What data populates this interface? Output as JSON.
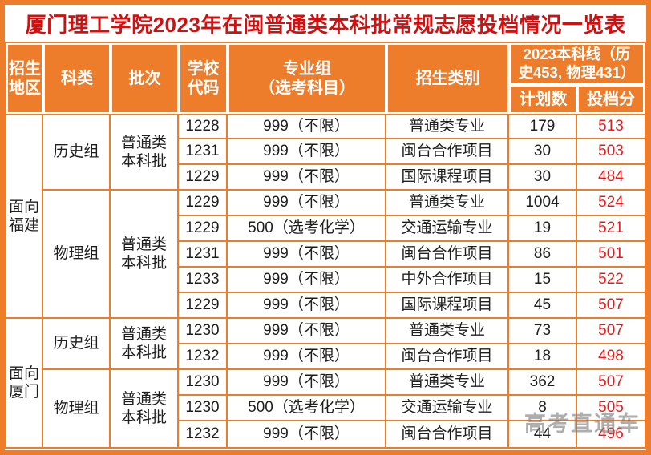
{
  "title": "厦门理工学院2023年在闽普通类本科批常规志愿投档情况一览表",
  "watermark": "高考直通车",
  "colors": {
    "orange": "#ED7C2B",
    "title_red": "#D30F0F",
    "score_red": "#E51A1A",
    "text": "#1F1F1F",
    "watermark_gray": "#7D7D7D"
  },
  "header": {
    "region": "招生\n地区",
    "category": "科类",
    "batch": "批次",
    "school_code": "学校\n代码",
    "major_group": "专业组\n（选考科目）",
    "admission_type": "招生类别",
    "score_line": "2023本科线（历\n史453, 物理431）",
    "plan_count": "计划数",
    "admit_score": "投档分"
  },
  "regions": [
    {
      "label": "面向\n福建",
      "rows": 8
    },
    {
      "label": "面向\n厦门",
      "rows": 5
    }
  ],
  "groups": [
    {
      "category": "历史组",
      "batch": "普通类\n本科批",
      "rows": 3
    },
    {
      "category": "物理组",
      "batch": "普通类\n本科批",
      "rows": 5
    },
    {
      "category": "历史组",
      "batch": "普通类\n本科批",
      "rows": 2
    },
    {
      "category": "物理组",
      "batch": "普通类\n本科批",
      "rows": 3
    }
  ],
  "chart_data": {
    "type": "table",
    "title": "厦门理工学院2023年在闽普通类本科批常规志愿投档情况一览表",
    "score_line_note": "2023本科线（历史453, 物理431）",
    "columns": [
      "招生地区",
      "科类",
      "批次",
      "学校代码",
      "专业组（选考科目）",
      "招生类别",
      "计划数",
      "投档分"
    ],
    "rows": [
      {
        "region": "面向福建",
        "category": "历史组",
        "batch": "普通类本科批",
        "code": "1228",
        "group": "999（不限）",
        "type": "普通类专业",
        "plan": 179,
        "score": 513
      },
      {
        "region": "面向福建",
        "category": "历史组",
        "batch": "普通类本科批",
        "code": "1231",
        "group": "999（不限）",
        "type": "闽台合作项目",
        "plan": 30,
        "score": 503
      },
      {
        "region": "面向福建",
        "category": "历史组",
        "batch": "普通类本科批",
        "code": "1229",
        "group": "999（不限）",
        "type": "国际课程项目",
        "plan": 30,
        "score": 484
      },
      {
        "region": "面向福建",
        "category": "物理组",
        "batch": "普通类本科批",
        "code": "1229",
        "group": "999（不限）",
        "type": "普通类专业",
        "plan": 1004,
        "score": 524
      },
      {
        "region": "面向福建",
        "category": "物理组",
        "batch": "普通类本科批",
        "code": "1229",
        "group": "500（选考化学）",
        "type": "交通运输专业",
        "plan": 19,
        "score": 521
      },
      {
        "region": "面向福建",
        "category": "物理组",
        "batch": "普通类本科批",
        "code": "1231",
        "group": "999（不限）",
        "type": "闽台合作项目",
        "plan": 86,
        "score": 501
      },
      {
        "region": "面向福建",
        "category": "物理组",
        "batch": "普通类本科批",
        "code": "1233",
        "group": "999（不限）",
        "type": "中外合作项目",
        "plan": 15,
        "score": 522
      },
      {
        "region": "面向福建",
        "category": "物理组",
        "batch": "普通类本科批",
        "code": "1229",
        "group": "999（不限）",
        "type": "国际课程项目",
        "plan": 45,
        "score": 507
      },
      {
        "region": "面向厦门",
        "category": "历史组",
        "batch": "普通类本科批",
        "code": "1230",
        "group": "999（不限）",
        "type": "普通类专业",
        "plan": 73,
        "score": 507
      },
      {
        "region": "面向厦门",
        "category": "历史组",
        "batch": "普通类本科批",
        "code": "1232",
        "group": "999（不限）",
        "type": "闽台合作项目",
        "plan": 18,
        "score": 498
      },
      {
        "region": "面向厦门",
        "category": "物理组",
        "batch": "普通类本科批",
        "code": "1230",
        "group": "999（不限）",
        "type": "普通类专业",
        "plan": 362,
        "score": 507
      },
      {
        "region": "面向厦门",
        "category": "物理组",
        "batch": "普通类本科批",
        "code": "1230",
        "group": "500（选考化学）",
        "type": "交通运输专业",
        "plan": 8,
        "score": 505
      },
      {
        "region": "面向厦门",
        "category": "物理组",
        "batch": "普通类本科批",
        "code": "1232",
        "group": "999（不限）",
        "type": "闽台合作项目",
        "plan": 44,
        "score": 496
      }
    ]
  }
}
